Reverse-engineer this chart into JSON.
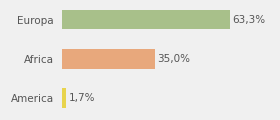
{
  "categories": [
    "America",
    "Africa",
    "Europa"
  ],
  "values": [
    1.7,
    35.0,
    63.3
  ],
  "labels": [
    "1,7%",
    "35,0%",
    "63,3%"
  ],
  "bar_colors": [
    "#e8d44d",
    "#e8a87c",
    "#a8c08a"
  ],
  "background_color": "#f0f0f0",
  "xlim": [
    0,
    80
  ],
  "bar_height": 0.5,
  "label_fontsize": 7.5,
  "tick_fontsize": 7.5
}
